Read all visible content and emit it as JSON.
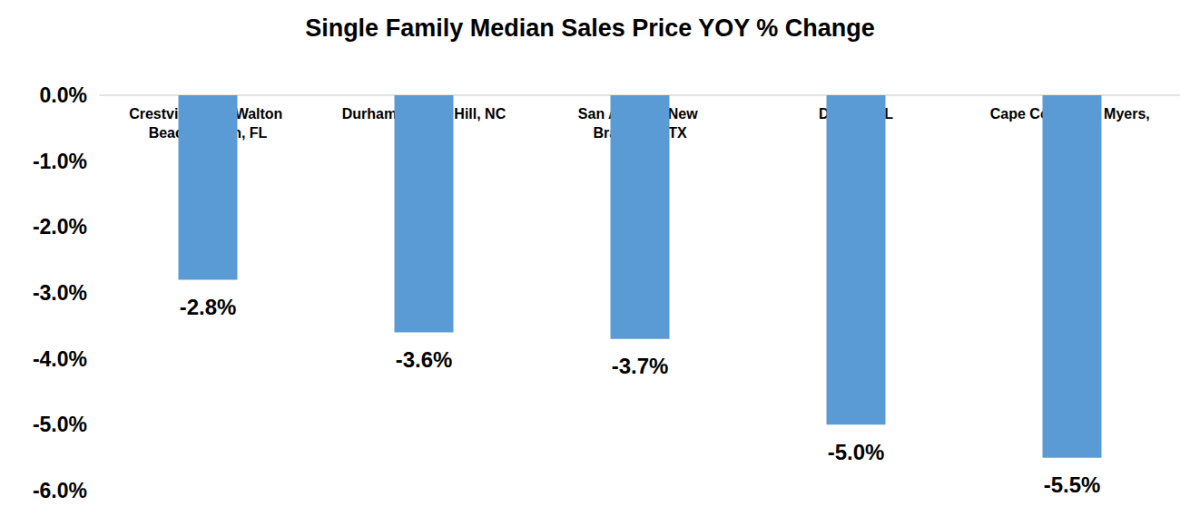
{
  "chart_data": {
    "type": "bar",
    "title": "Single Family Median Sales Price YOY % Change",
    "categories": [
      "Crestview-Fort Walton Beach-Destin, FL",
      "Durham-Chapel Hill, NC",
      "San Antonio-New Braunfels, TX",
      "Decatur, IL",
      "Cape Coral-Fort Myers, FL"
    ],
    "values": [
      -2.8,
      -3.6,
      -3.7,
      -5.0,
      -5.5
    ],
    "value_labels": [
      "-2.8%",
      "-3.6%",
      "-3.7%",
      "-5.0%",
      "-5.5%"
    ],
    "color": "#5b9bd5",
    "ylim": [
      -6,
      0
    ],
    "yticks": [
      {
        "value": -6,
        "label": "-6.0%"
      },
      {
        "value": -5,
        "label": "-5.0%"
      },
      {
        "value": -4,
        "label": "-4.0%"
      },
      {
        "value": -3,
        "label": "-3.0%"
      },
      {
        "value": -2,
        "label": "-2.0%"
      },
      {
        "value": -1,
        "label": "-1.0%"
      },
      {
        "value": 0,
        "label": "0.0%"
      }
    ],
    "grid": false,
    "data_labels": true
  }
}
